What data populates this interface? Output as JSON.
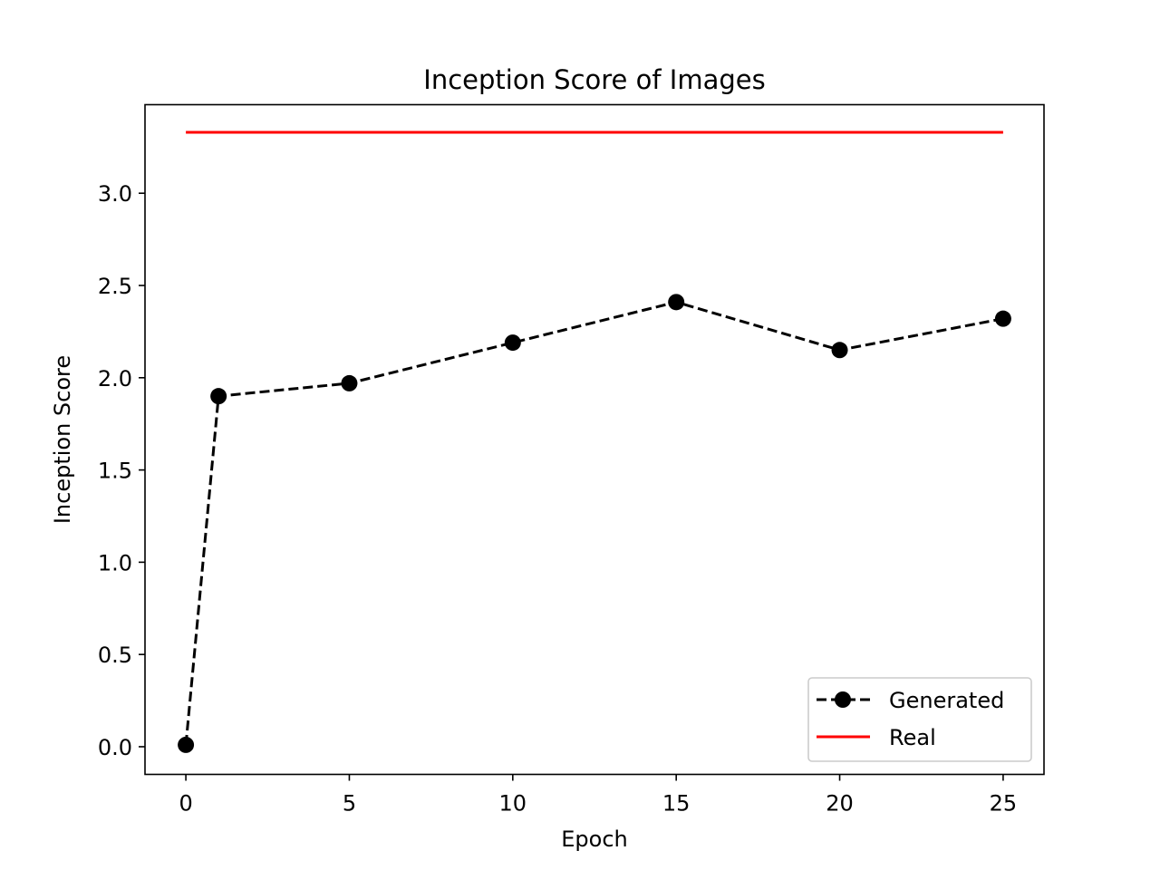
{
  "chart_data": {
    "type": "line",
    "title": "Inception Score of Images",
    "xlabel": "Epoch",
    "ylabel": "Inception Score",
    "xlim": [
      -1.25,
      26.25
    ],
    "ylim": [
      -0.15,
      3.48
    ],
    "xticks": [
      0,
      5,
      10,
      15,
      20,
      25
    ],
    "yticks": [
      0.0,
      0.5,
      1.0,
      1.5,
      2.0,
      2.5,
      3.0
    ],
    "xtick_labels": [
      "0",
      "5",
      "10",
      "15",
      "20",
      "25"
    ],
    "ytick_labels": [
      "0.0",
      "0.5",
      "1.0",
      "1.5",
      "2.0",
      "2.5",
      "3.0"
    ],
    "grid": false,
    "legend_position": "lower-right",
    "series": [
      {
        "name": "Generated",
        "color": "#000000",
        "style": "dashed",
        "marker": "circle",
        "x": [
          0,
          1,
          5,
          10,
          15,
          20,
          25
        ],
        "y": [
          0.01,
          1.9,
          1.97,
          2.19,
          2.41,
          2.15,
          2.32
        ]
      },
      {
        "name": "Real",
        "color": "#ff0000",
        "style": "solid",
        "marker": "none",
        "x": [
          0,
          25
        ],
        "y": [
          3.33,
          3.33
        ]
      }
    ]
  }
}
